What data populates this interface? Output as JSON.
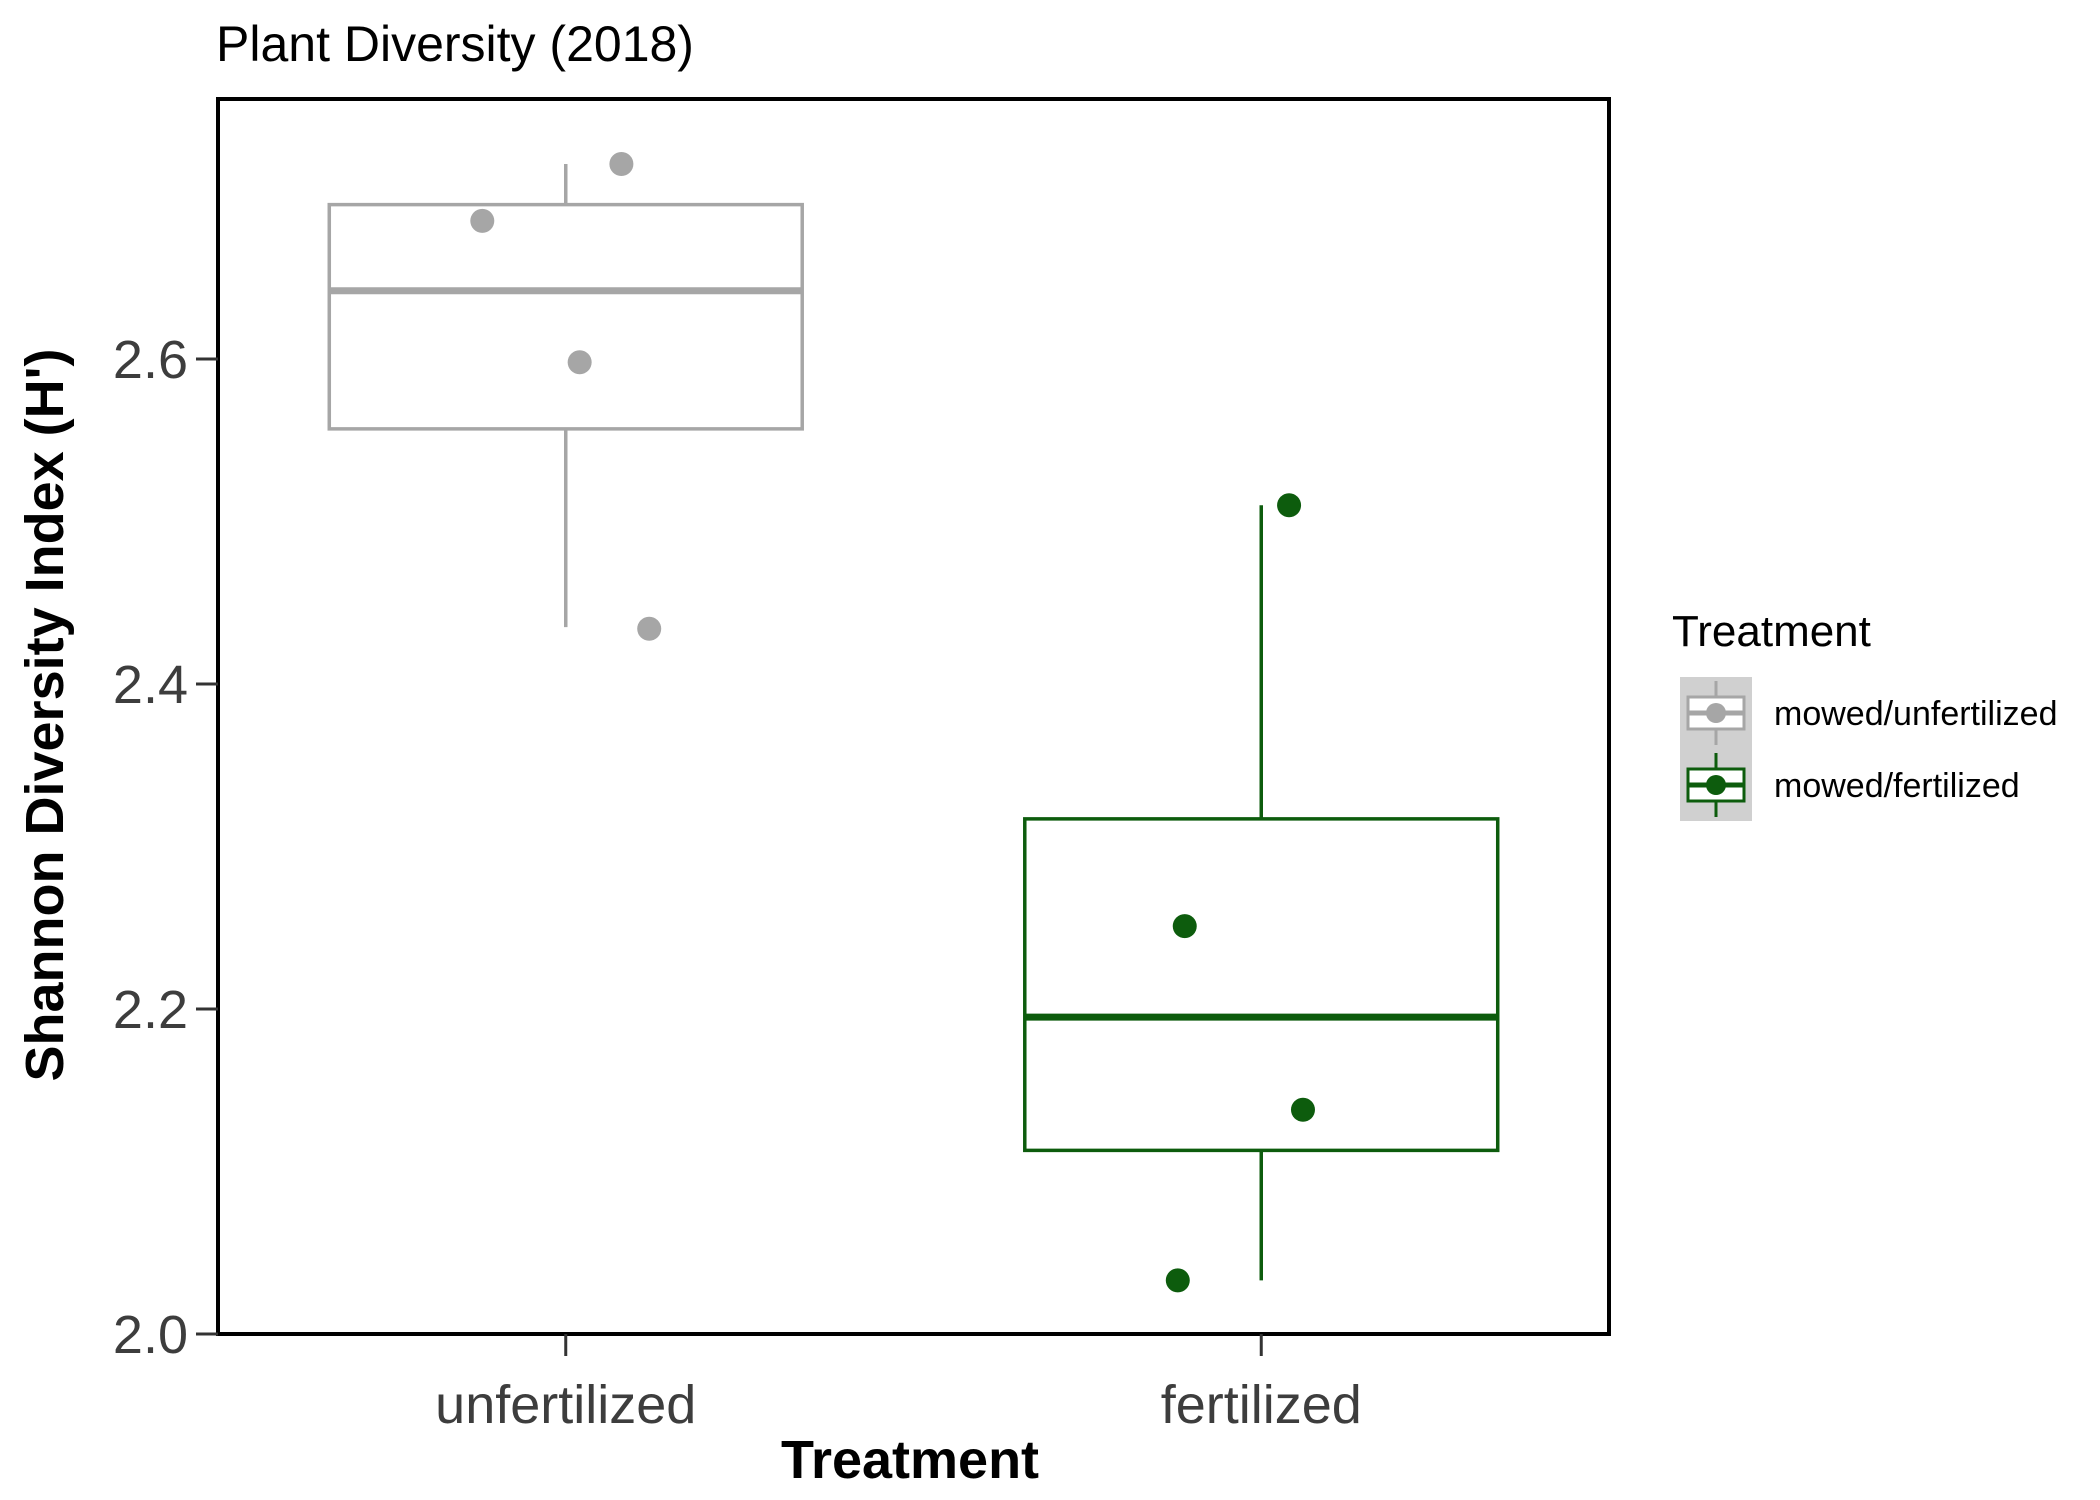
{
  "chart_data": {
    "type": "box",
    "title": "Plant Diversity (2018)",
    "xlabel": "Treatment",
    "ylabel": "Shannon Diversity Index (H')",
    "categories": [
      "unfertilized",
      "fertilized"
    ],
    "ylim": [
      2.0,
      2.76
    ],
    "yticks": [
      2.0,
      2.2,
      2.4,
      2.6
    ],
    "ytick_labels": [
      "2.0",
      "2.2",
      "2.4",
      "2.6"
    ],
    "grid": false,
    "legend": {
      "title": "Treatment",
      "position": "right",
      "entries": [
        "mowed/unfertilized",
        "mowed/fertilized"
      ]
    },
    "series": [
      {
        "name": "mowed/unfertilized",
        "category": "unfertilized",
        "color": "#a6a6a6",
        "whisker_low": 2.435,
        "q1": 2.557,
        "median": 2.642,
        "q3": 2.695,
        "whisker_high": 2.72,
        "points": [
          2.72,
          2.685,
          2.598,
          2.434
        ],
        "jitter": [
          0.08,
          -0.12,
          0.02,
          0.12
        ]
      },
      {
        "name": "mowed/fertilized",
        "category": "fertilized",
        "color": "#0d5c0d",
        "whisker_low": 2.033,
        "q1": 2.113,
        "median": 2.195,
        "q3": 2.317,
        "whisker_high": 2.51,
        "points": [
          2.51,
          2.251,
          2.138,
          2.033
        ],
        "jitter": [
          0.04,
          -0.11,
          0.06,
          -0.12
        ]
      }
    ]
  }
}
